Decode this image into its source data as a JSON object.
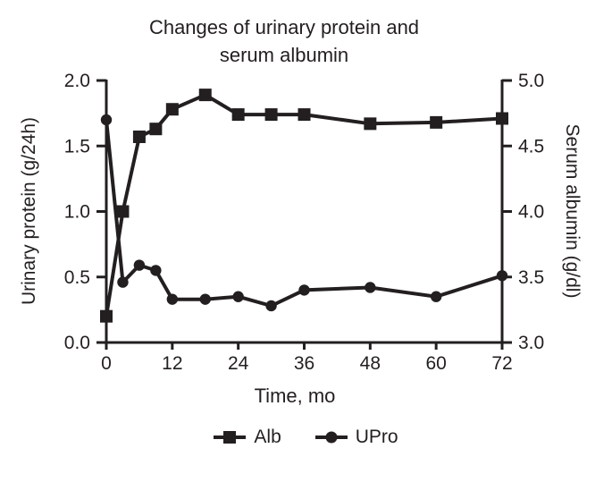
{
  "figure": {
    "background": "#ffffff",
    "ink_color": "#231f20"
  },
  "chart_data": {
    "type": "line",
    "title": "Changes of urinary protein and serum albumin",
    "xlabel": "Time, mo",
    "ylabel_left": "Urinary protein (g/24h)",
    "ylabel_right": "Serum albumin (g/dl)",
    "x": [
      0,
      3,
      6,
      9,
      12,
      18,
      24,
      30,
      36,
      48,
      60,
      72
    ],
    "xticks": [
      0,
      12,
      24,
      36,
      48,
      60,
      72
    ],
    "yticks_left": [
      "0.0",
      "0.5",
      "1.0",
      "1.5",
      "2.0"
    ],
    "yticks_right": [
      "3.0",
      "3.5",
      "4.0",
      "4.5",
      "5.0"
    ],
    "xlim": [
      0,
      72
    ],
    "ylim_left": [
      0.0,
      2.0
    ],
    "ylim_right": [
      3.0,
      5.0
    ],
    "grid": false,
    "legend_position": "bottom",
    "color": "#231f20",
    "series": [
      {
        "name": "Alb",
        "axis": "right",
        "marker": "square",
        "values": [
          3.2,
          4.0,
          4.57,
          4.63,
          4.78,
          4.89,
          4.74,
          4.74,
          4.74,
          4.67,
          4.68,
          4.71
        ]
      },
      {
        "name": "UPro",
        "axis": "left",
        "marker": "circle",
        "values": [
          1.7,
          0.46,
          0.59,
          0.55,
          0.33,
          0.33,
          0.35,
          0.28,
          0.4,
          0.42,
          0.35,
          0.51
        ]
      }
    ]
  },
  "legend": {
    "alb_label": "Alb",
    "upro_label": "UPro"
  }
}
